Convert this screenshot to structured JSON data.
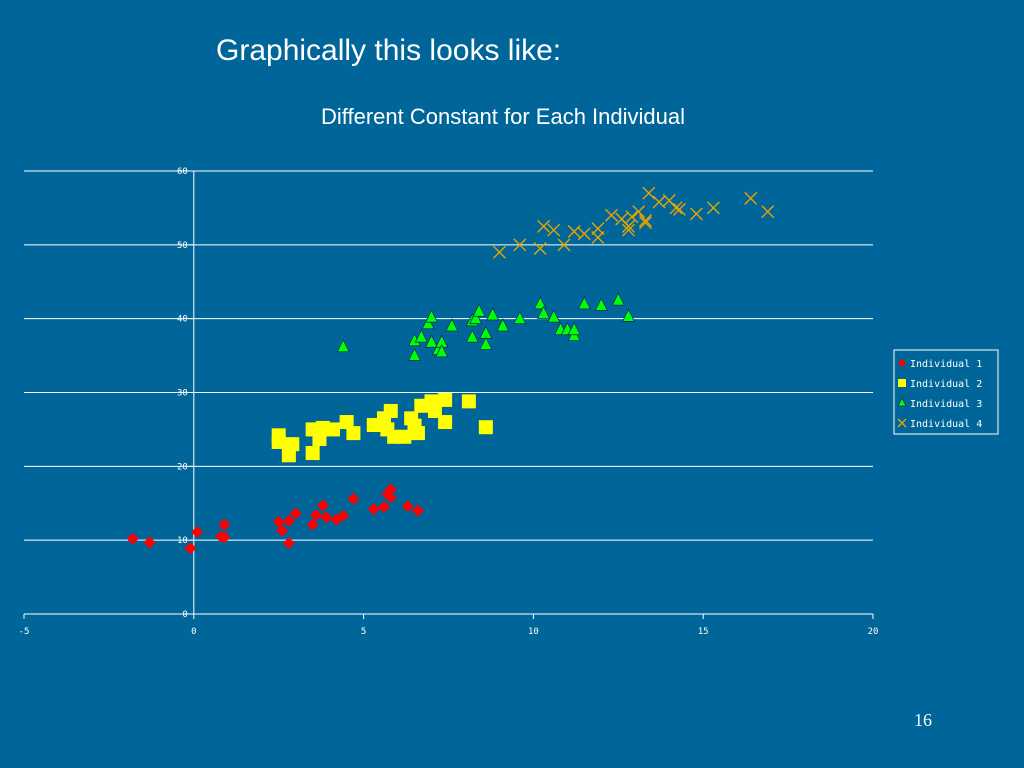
{
  "slide": {
    "title": "Graphically this looks like:",
    "page_number": "16"
  },
  "colors": {
    "background": "#006699",
    "individual_1": "#ff0000",
    "individual_2": "#ffff00",
    "individual_3": "#00ff00",
    "individual_4": "#e6a200"
  },
  "chart_data": {
    "type": "scatter",
    "title": "Different Constant for Each Individual",
    "xlabel": "",
    "ylabel": "",
    "xlim": [
      -5,
      20
    ],
    "ylim": [
      0,
      60
    ],
    "x_ticks": [
      "-5",
      "0",
      "5",
      "10",
      "15",
      "20"
    ],
    "y_ticks": [
      "0",
      "10",
      "20",
      "30",
      "40",
      "50",
      "60"
    ],
    "grid": "horizontal",
    "legend_position": "right",
    "series": [
      {
        "name": "Individual 1",
        "marker": "diamond",
        "points": [
          [
            -1.8,
            10.2
          ],
          [
            -1.3,
            9.7
          ],
          [
            -0.1,
            8.9
          ],
          [
            0.1,
            11.1
          ],
          [
            0.8,
            10.5
          ],
          [
            0.9,
            10.4
          ],
          [
            0.9,
            12.1
          ],
          [
            2.5,
            12.5
          ],
          [
            2.6,
            11.3
          ],
          [
            2.8,
            12.6
          ],
          [
            2.8,
            9.6
          ],
          [
            3.0,
            13.6
          ],
          [
            3.5,
            12.1
          ],
          [
            3.6,
            13.4
          ],
          [
            3.8,
            14.7
          ],
          [
            3.9,
            13.1
          ],
          [
            4.2,
            12.8
          ],
          [
            4.4,
            13.3
          ],
          [
            4.7,
            15.6
          ],
          [
            5.3,
            14.2
          ],
          [
            5.6,
            14.5
          ],
          [
            5.7,
            16.2
          ],
          [
            5.8,
            15.8
          ],
          [
            5.8,
            16.9
          ],
          [
            6.3,
            14.6
          ],
          [
            6.6,
            14.0
          ]
        ]
      },
      {
        "name": "Individual 2",
        "marker": "square",
        "points": [
          [
            2.5,
            24.2
          ],
          [
            2.5,
            23.3
          ],
          [
            2.8,
            21.5
          ],
          [
            2.9,
            23.0
          ],
          [
            3.5,
            21.8
          ],
          [
            3.5,
            25.0
          ],
          [
            3.7,
            23.7
          ],
          [
            3.8,
            25.2
          ],
          [
            4.1,
            25.0
          ],
          [
            4.5,
            26.0
          ],
          [
            4.7,
            24.5
          ],
          [
            5.3,
            25.6
          ],
          [
            5.6,
            26.5
          ],
          [
            5.7,
            25.0
          ],
          [
            5.8,
            27.5
          ],
          [
            5.9,
            24.0
          ],
          [
            6.2,
            24.0
          ],
          [
            6.4,
            26.5
          ],
          [
            6.5,
            25.5
          ],
          [
            6.6,
            24.5
          ],
          [
            6.7,
            28.2
          ],
          [
            7.0,
            28.8
          ],
          [
            7.1,
            27.5
          ],
          [
            7.4,
            29.0
          ],
          [
            7.4,
            26.0
          ],
          [
            8.1,
            28.8
          ],
          [
            8.6,
            25.3
          ]
        ]
      },
      {
        "name": "Individual 3",
        "marker": "triangle",
        "points": [
          [
            4.4,
            36.2
          ],
          [
            6.5,
            35.0
          ],
          [
            6.5,
            37.0
          ],
          [
            6.7,
            37.5
          ],
          [
            6.9,
            39.3
          ],
          [
            7.0,
            40.2
          ],
          [
            7.0,
            36.8
          ],
          [
            7.2,
            35.8
          ],
          [
            7.3,
            36.8
          ],
          [
            7.3,
            35.5
          ],
          [
            7.6,
            39.0
          ],
          [
            8.2,
            39.7
          ],
          [
            8.2,
            37.5
          ],
          [
            8.3,
            40.0
          ],
          [
            8.4,
            41.0
          ],
          [
            8.6,
            38.0
          ],
          [
            8.6,
            36.5
          ],
          [
            8.8,
            40.5
          ],
          [
            9.1,
            39.0
          ],
          [
            9.6,
            40.0
          ],
          [
            10.2,
            42.0
          ],
          [
            10.3,
            40.7
          ],
          [
            10.6,
            40.2
          ],
          [
            10.8,
            38.5
          ],
          [
            11.0,
            38.5
          ],
          [
            11.2,
            37.7
          ],
          [
            11.2,
            38.5
          ],
          [
            11.5,
            42.0
          ],
          [
            12.0,
            41.8
          ],
          [
            12.5,
            42.5
          ],
          [
            12.8,
            40.3
          ]
        ]
      },
      {
        "name": "Individual 4",
        "marker": "x",
        "points": [
          [
            9.0,
            49.0
          ],
          [
            9.6,
            50.0
          ],
          [
            10.2,
            49.5
          ],
          [
            10.3,
            52.5
          ],
          [
            10.6,
            52.0
          ],
          [
            10.9,
            50.0
          ],
          [
            11.2,
            51.8
          ],
          [
            11.5,
            51.5
          ],
          [
            11.9,
            52.2
          ],
          [
            11.9,
            51.0
          ],
          [
            12.3,
            54.0
          ],
          [
            12.6,
            53.5
          ],
          [
            12.8,
            52.0
          ],
          [
            12.8,
            52.5
          ],
          [
            12.9,
            53.8
          ],
          [
            13.1,
            54.5
          ],
          [
            13.3,
            53.3
          ],
          [
            13.3,
            53.0
          ],
          [
            13.4,
            57.0
          ],
          [
            13.7,
            55.8
          ],
          [
            14.0,
            56.0
          ],
          [
            14.2,
            55.0
          ],
          [
            14.3,
            54.8
          ],
          [
            14.8,
            54.2
          ],
          [
            15.3,
            55.0
          ],
          [
            16.4,
            56.3
          ],
          [
            16.9,
            54.5
          ]
        ]
      }
    ]
  }
}
